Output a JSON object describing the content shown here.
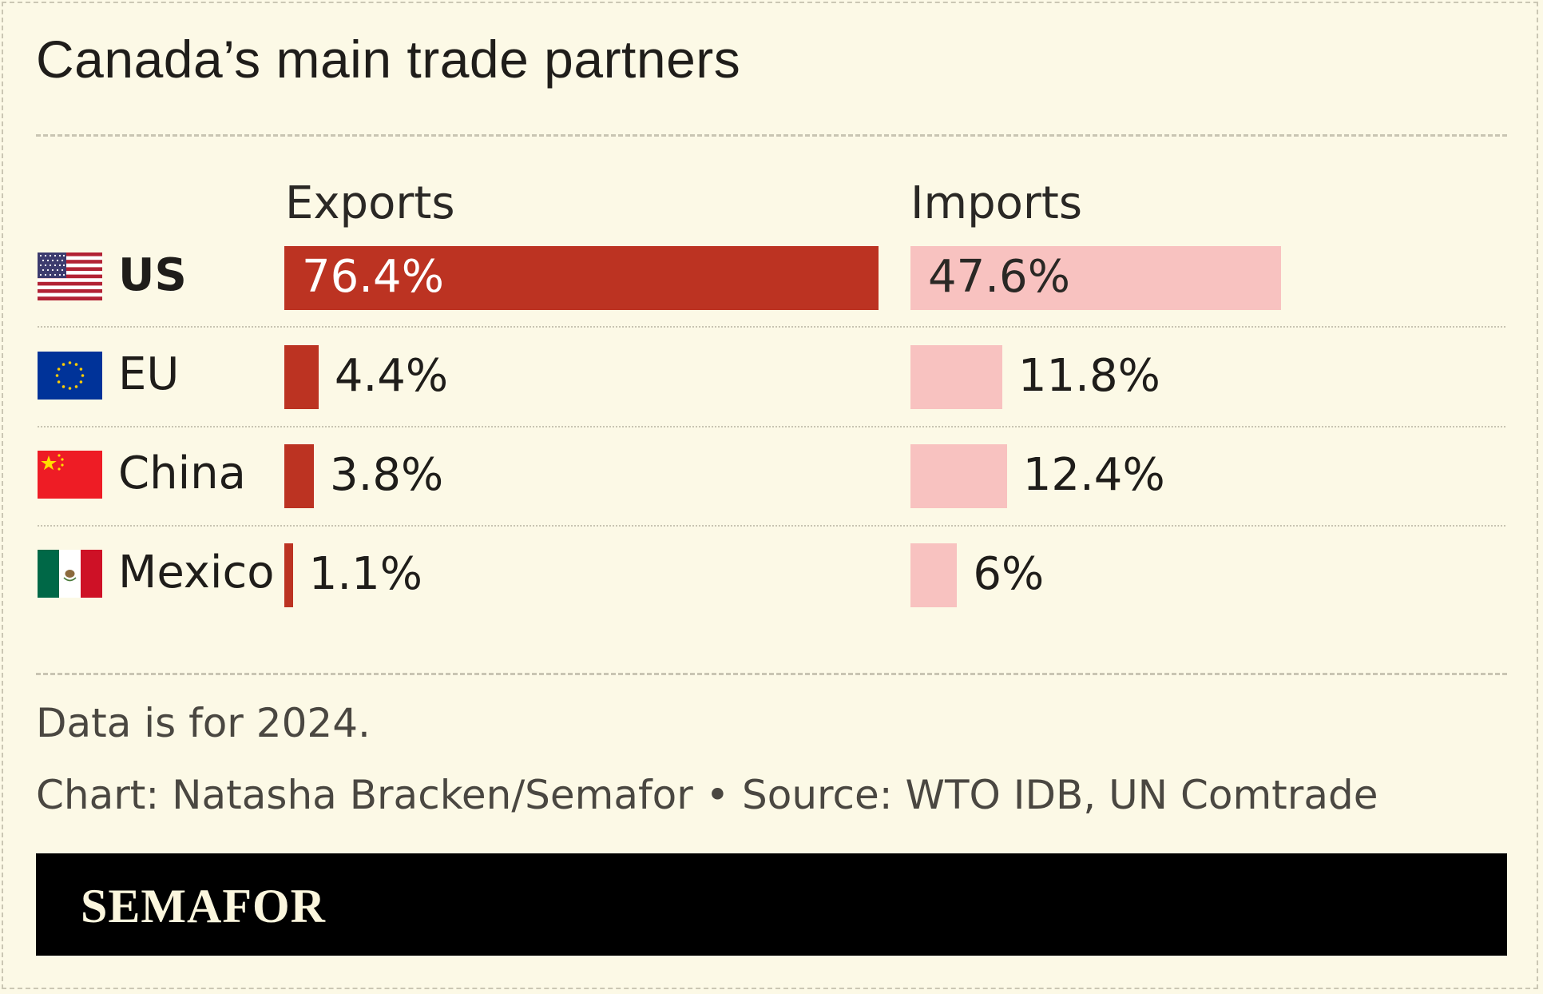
{
  "title": "Canada’s main trade partners",
  "headers": {
    "exports": "Exports",
    "imports": "Imports"
  },
  "colors": {
    "exports": "#bc3322",
    "imports": "#f8c2c0",
    "background": "#fcf9e6"
  },
  "chart_data": {
    "type": "bar",
    "categories": [
      "US",
      "EU",
      "China",
      "Mexico"
    ],
    "series": [
      {
        "name": "Exports",
        "values": [
          76.4,
          4.4,
          3.8,
          1.1
        ],
        "labels": [
          "76.4%",
          "4.4%",
          "3.8%",
          "1.1%"
        ]
      },
      {
        "name": "Imports",
        "values": [
          47.6,
          11.8,
          12.4,
          6
        ],
        "labels": [
          "47.6%",
          "11.8%",
          "12.4%",
          "6%"
        ]
      }
    ],
    "unit": "%",
    "highlighted_category": "US"
  },
  "rows": [
    {
      "country": "US",
      "flag": "us-flag-icon"
    },
    {
      "country": "EU",
      "flag": "eu-flag-icon"
    },
    {
      "country": "China",
      "flag": "china-flag-icon"
    },
    {
      "country": "Mexico",
      "flag": "mexico-flag-icon"
    }
  ],
  "note": "Data is for 2024.",
  "credit": "Chart: Natasha Bracken/Semafor • Source: WTO IDB, UN Comtrade",
  "brand": "SEMAFOR"
}
